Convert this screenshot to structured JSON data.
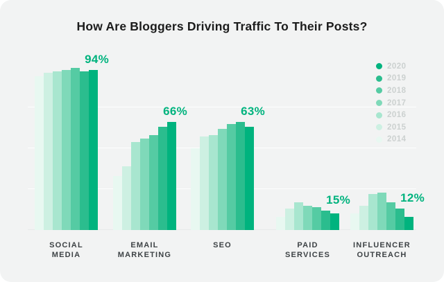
{
  "title": "How Are Bloggers Driving Traffic To Their Posts?",
  "legend": {
    "years": [
      "2020",
      "2019",
      "2018",
      "2017",
      "2016",
      "2015",
      "2014"
    ]
  },
  "chart_data": {
    "type": "bar",
    "title": "How Are Bloggers Driving Traffic To Their Posts?",
    "categories": [
      "Social Media",
      "Email Marketing",
      "SEO",
      "Paid Services",
      "Influencer Outreach"
    ],
    "category_label_lines": [
      "SOCIAL\nMEDIA",
      "EMAIL\nMARKETING",
      "SEO",
      "PAID\nSERVICES",
      "INFLUENCER\nOUTREACH"
    ],
    "x": [
      "2014",
      "2015",
      "2016",
      "2017",
      "2018",
      "2019",
      "2020"
    ],
    "series": [
      {
        "name": "Social Media",
        "values": [
          94,
          96,
          97,
          98,
          99,
          97,
          98
        ],
        "callout": "94%"
      },
      {
        "name": "Email Marketing",
        "values": [
          33,
          39,
          54,
          56,
          58,
          63,
          66
        ],
        "callout": "66%"
      },
      {
        "name": "SEO",
        "values": [
          50,
          57,
          58,
          62,
          65,
          66,
          63
        ],
        "callout": "63%"
      },
      {
        "name": "Paid Services",
        "values": [
          8,
          13,
          17,
          15,
          14,
          12,
          10
        ],
        "callout": "15%"
      },
      {
        "name": "Influencer Outreach",
        "values": [
          10,
          15,
          22,
          23,
          17,
          13,
          8
        ],
        "callout": "12%"
      }
    ],
    "year_colors": {
      "2014": "#e8f8f1",
      "2015": "#cdf0e2",
      "2016": "#a8e6cf",
      "2017": "#7fd9b9",
      "2018": "#55cba3",
      "2019": "#2bbd8e",
      "2020": "#00b37e"
    },
    "ylim": [
      0,
      100
    ],
    "gridlines_percent": [
      0,
      25,
      50,
      75
    ],
    "grid": true,
    "legend_position": "top-right",
    "accent_color": "#00b37e",
    "background_color": "#f2f3f3",
    "title_color": "#1c1c1c",
    "legend_text_color": "#ccd1d0",
    "category_label_color": "#3d4245"
  }
}
